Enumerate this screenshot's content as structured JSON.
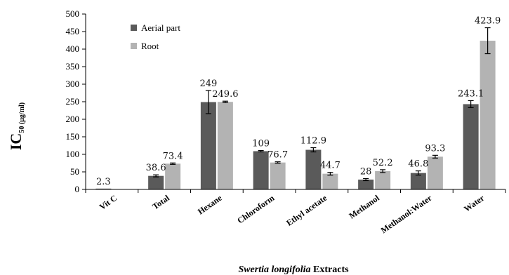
{
  "chart_data": {
    "type": "bar",
    "categories": [
      "Vit C",
      "Total",
      "Hexane",
      "Chloroform",
      "Ethyl acetate",
      "Methanol",
      "Methanol:Water",
      "Water"
    ],
    "series": [
      {
        "name": "Aerial part",
        "color": "#5a5a5a",
        "values": [
          2.3,
          38.6,
          249,
          109,
          112.9,
          28,
          46.8,
          243.1
        ],
        "errors": [
          0,
          3,
          33,
          2,
          6,
          3,
          6,
          10
        ]
      },
      {
        "name": "Root",
        "color": "#b3b3b3",
        "values": [
          null,
          73.4,
          249.6,
          76.7,
          44.7,
          52.2,
          93.3,
          423.9
        ],
        "errors": [
          0,
          2,
          2,
          2,
          4,
          4,
          4,
          37
        ]
      }
    ],
    "data_labels": [
      [
        "2.3",
        "38.6",
        "249",
        "109",
        "112.9",
        "28",
        "46.8",
        "243.1"
      ],
      [
        "",
        "73.4",
        "249.6",
        "76.7",
        "44.7",
        "52.2",
        "93.3",
        "423.9"
      ]
    ],
    "ylabel_main": "IC",
    "ylabel_sub": "50 (µg/ml)",
    "xlabel_italic": "Swertia longifolia",
    "xlabel_rest": " Extracts",
    "ylim": [
      0,
      500
    ],
    "yticks": [
      0,
      50,
      100,
      150,
      200,
      250,
      300,
      350,
      400,
      450,
      500
    ],
    "legend_position": "top-left",
    "grid": false
  }
}
